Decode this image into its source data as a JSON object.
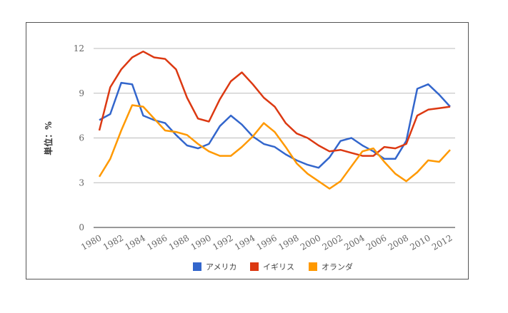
{
  "chart_data": {
    "type": "line",
    "title": "",
    "xlabel": "",
    "ylabel": "単位：%",
    "ylim": [
      0,
      12
    ],
    "yticks": [
      0,
      3,
      6,
      9,
      12
    ],
    "grid": true,
    "legend_position": "bottom",
    "x": [
      1980,
      1981,
      1982,
      1983,
      1984,
      1985,
      1986,
      1987,
      1988,
      1989,
      1990,
      1991,
      1992,
      1993,
      1994,
      1995,
      1996,
      1997,
      1998,
      1999,
      2000,
      2001,
      2002,
      2003,
      2004,
      2005,
      2006,
      2007,
      2008,
      2009,
      2010,
      2011,
      2012
    ],
    "xtick_labels": [
      "1980",
      "1982",
      "1984",
      "1986",
      "1988",
      "1990",
      "1992",
      "1994",
      "1996",
      "1998",
      "2000",
      "2002",
      "2004",
      "2006",
      "2008",
      "2010",
      "2012"
    ],
    "series": [
      {
        "name": "アメリカ",
        "color": "#3366cc",
        "values": [
          7.2,
          7.6,
          9.7,
          9.6,
          7.5,
          7.2,
          7.0,
          6.2,
          5.5,
          5.3,
          5.6,
          6.8,
          7.5,
          6.9,
          6.1,
          5.6,
          5.4,
          4.9,
          4.5,
          4.2,
          4.0,
          4.7,
          5.8,
          6.0,
          5.5,
          5.1,
          4.6,
          4.6,
          5.8,
          9.3,
          9.6,
          8.9,
          8.1
        ]
      },
      {
        "name": "イギリス",
        "color": "#dc3912",
        "values": [
          6.5,
          9.4,
          10.6,
          11.4,
          11.8,
          11.4,
          11.3,
          10.6,
          8.7,
          7.3,
          7.1,
          8.6,
          9.8,
          10.4,
          9.6,
          8.7,
          8.1,
          7.0,
          6.3,
          6.0,
          5.5,
          5.1,
          5.2,
          5.0,
          4.8,
          4.8,
          5.4,
          5.3,
          5.6,
          7.5,
          7.9,
          8.0,
          8.1
        ]
      },
      {
        "name": "オランダ",
        "color": "#ff9900",
        "values": [
          3.4,
          4.6,
          6.5,
          8.2,
          8.1,
          7.3,
          6.5,
          6.4,
          6.2,
          5.6,
          5.1,
          4.8,
          4.8,
          5.4,
          6.1,
          7.0,
          6.4,
          5.4,
          4.3,
          3.6,
          3.1,
          2.6,
          3.1,
          4.1,
          5.1,
          5.3,
          4.4,
          3.6,
          3.1,
          3.7,
          4.5,
          4.4,
          5.2
        ]
      }
    ]
  }
}
